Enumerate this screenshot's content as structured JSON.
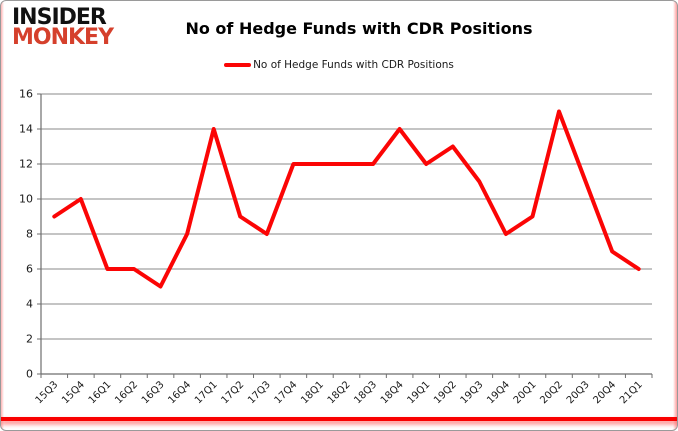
{
  "logo": {
    "line1": "INSIDER",
    "line2": "MONKEY"
  },
  "header": {
    "title": "No of Hedge Funds with CDR Positions"
  },
  "legend": {
    "label": "No of Hedge Funds with CDR Positions"
  },
  "colors": {
    "line": "#FB0505",
    "grid": "#8a8a8a",
    "axis": "#6e6e6e",
    "tick_text": "#1a1a1a",
    "logo_black": "#111111",
    "logo_red": "#D5402C",
    "bottom_bar": "#F90000"
  },
  "chart_data": {
    "type": "line",
    "title": "No of Hedge Funds with CDR Positions",
    "categories": [
      "15Q3",
      "15Q4",
      "16Q1",
      "16Q2",
      "16Q3",
      "16Q4",
      "17Q1",
      "17Q2",
      "17Q3",
      "17Q4",
      "18Q1",
      "18Q2",
      "18Q3",
      "18Q4",
      "19Q1",
      "19Q2",
      "19Q3",
      "19Q4",
      "20Q1",
      "20Q2",
      "20Q3",
      "20Q4",
      "21Q1"
    ],
    "series": [
      {
        "name": "No of Hedge Funds with CDR Positions",
        "values": [
          9,
          10,
          6,
          6,
          5,
          8,
          14,
          9,
          8,
          12,
          12,
          12,
          12,
          14,
          12,
          13,
          11,
          8,
          9,
          15,
          11,
          7,
          6
        ]
      }
    ],
    "xlabel": "",
    "ylabel": "",
    "ylim": [
      0,
      16
    ],
    "ytick_step": 2,
    "grid": true,
    "legend_position": "top"
  }
}
